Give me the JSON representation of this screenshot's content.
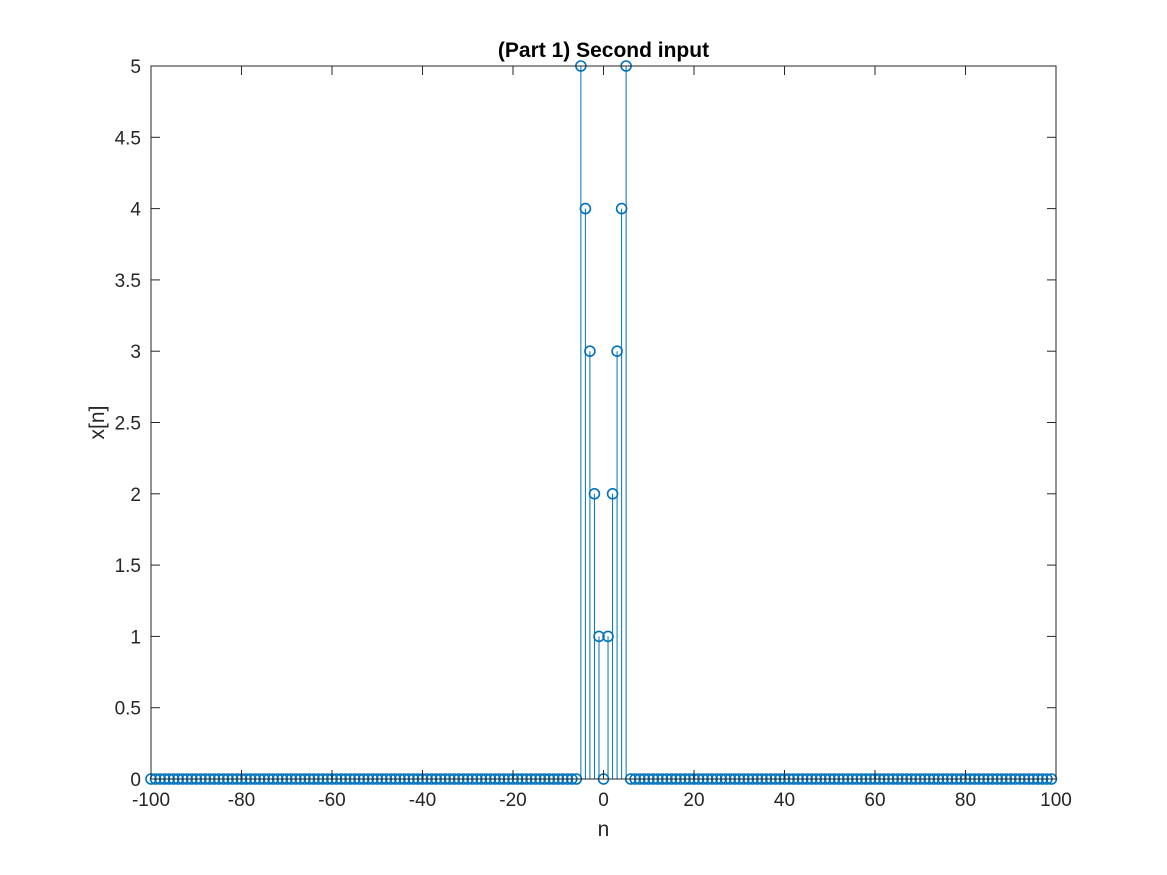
{
  "chart_data": {
    "type": "stem",
    "title": "(Part 1) Second input",
    "xlabel": "n",
    "ylabel": "x[n]",
    "xlim": [
      -100,
      100
    ],
    "ylim": [
      0,
      5
    ],
    "xticks": [
      -100,
      -80,
      -60,
      -40,
      -20,
      0,
      20,
      40,
      60,
      80,
      100
    ],
    "yticks": [
      0,
      0.5,
      1,
      1.5,
      2,
      2.5,
      3,
      3.5,
      4,
      4.5,
      5
    ],
    "x_tick_labels": [
      "-100",
      "-80",
      "-60",
      "-40",
      "-20",
      "0",
      "20",
      "40",
      "60",
      "80",
      "100"
    ],
    "y_tick_labels": [
      "0",
      "0.5",
      "1",
      "1.5",
      "2",
      "2.5",
      "3",
      "3.5",
      "4",
      "4.5",
      "5"
    ],
    "grid": false,
    "series_color": "#0072BD",
    "x_range": [
      -100,
      99
    ],
    "baseline_value": 0,
    "nonzero_points": [
      {
        "x": -5,
        "y": 5
      },
      {
        "x": -4,
        "y": 4
      },
      {
        "x": -3,
        "y": 3
      },
      {
        "x": -2,
        "y": 2
      },
      {
        "x": -1,
        "y": 1
      },
      {
        "x": 0,
        "y": 0
      },
      {
        "x": 1,
        "y": 1
      },
      {
        "x": 2,
        "y": 2
      },
      {
        "x": 3,
        "y": 3
      },
      {
        "x": 4,
        "y": 4
      },
      {
        "x": 5,
        "y": 5
      }
    ]
  }
}
